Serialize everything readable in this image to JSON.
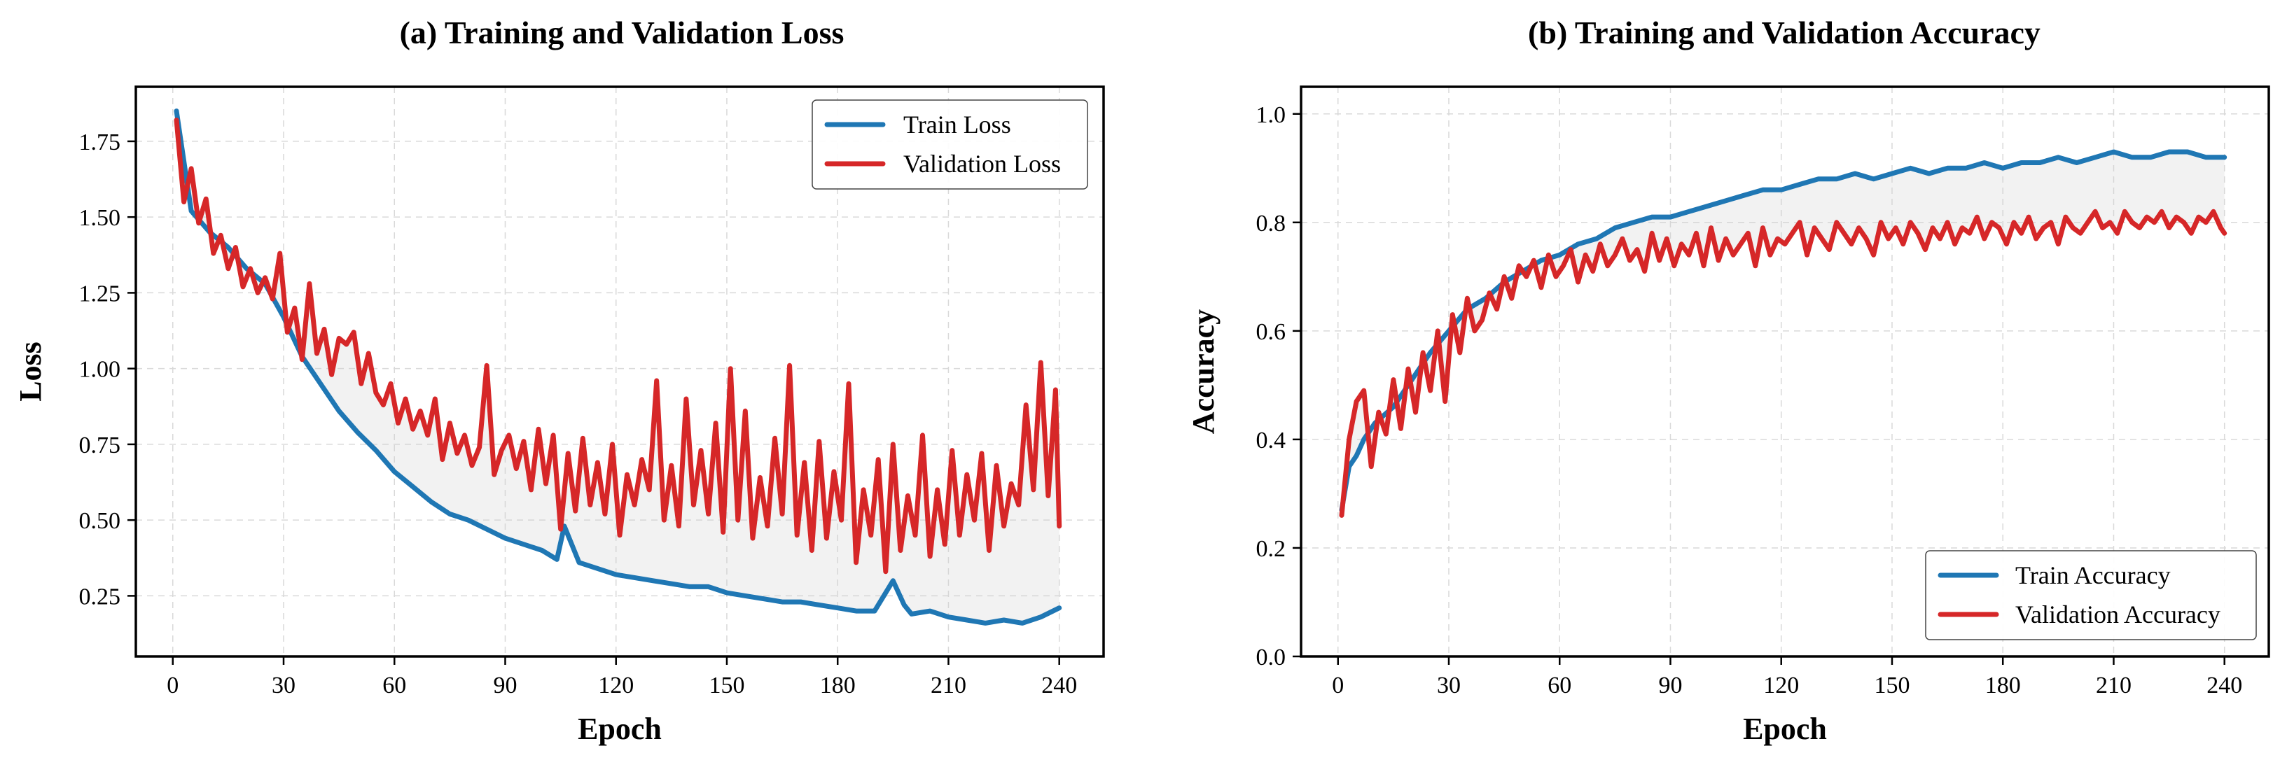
{
  "colors": {
    "train": "#1f77b4",
    "validation": "#d62728"
  },
  "chart_data": [
    {
      "type": "line",
      "title": "(a) Training and Validation Loss",
      "xlabel": "Epoch",
      "ylabel": "Loss",
      "xlim": [
        -10,
        252
      ],
      "ylim": [
        0.05,
        1.93
      ],
      "xticks": [
        0,
        30,
        60,
        90,
        120,
        150,
        180,
        210,
        240
      ],
      "xtick_labels": [
        "0",
        "30",
        "60",
        "90",
        "120",
        "150",
        "180",
        "210",
        "240"
      ],
      "yticks": [
        0.25,
        0.5,
        0.75,
        1.0,
        1.25,
        1.5,
        1.75
      ],
      "ytick_labels": [
        "0.25",
        "0.50",
        "0.75",
        "1.00",
        "1.25",
        "1.50",
        "1.75"
      ],
      "grid": true,
      "legend_position": "top-right",
      "gap_shading": true,
      "series": [
        {
          "name": "Train Loss",
          "x": [
            1,
            5,
            10,
            15,
            20,
            25,
            30,
            35,
            40,
            45,
            50,
            55,
            60,
            65,
            70,
            75,
            80,
            85,
            90,
            95,
            100,
            104,
            106,
            110,
            115,
            120,
            125,
            130,
            135,
            140,
            145,
            150,
            155,
            160,
            165,
            170,
            175,
            180,
            185,
            190,
            195,
            198,
            200,
            205,
            210,
            215,
            220,
            225,
            230,
            235,
            240
          ],
          "values": [
            1.85,
            1.52,
            1.45,
            1.4,
            1.33,
            1.28,
            1.17,
            1.04,
            0.95,
            0.86,
            0.79,
            0.73,
            0.66,
            0.61,
            0.56,
            0.52,
            0.5,
            0.47,
            0.44,
            0.42,
            0.4,
            0.37,
            0.48,
            0.36,
            0.34,
            0.32,
            0.31,
            0.3,
            0.29,
            0.28,
            0.28,
            0.26,
            0.25,
            0.24,
            0.23,
            0.23,
            0.22,
            0.21,
            0.2,
            0.2,
            0.3,
            0.22,
            0.19,
            0.2,
            0.18,
            0.17,
            0.16,
            0.17,
            0.16,
            0.18,
            0.21
          ]
        },
        {
          "name": "Validation Loss",
          "x": [
            1,
            3,
            5,
            7,
            9,
            11,
            13,
            15,
            17,
            19,
            21,
            23,
            25,
            27,
            29,
            31,
            33,
            35,
            37,
            39,
            41,
            43,
            45,
            47,
            49,
            51,
            53,
            55,
            57,
            59,
            61,
            63,
            65,
            67,
            69,
            71,
            73,
            75,
            77,
            79,
            81,
            83,
            85,
            87,
            89,
            91,
            93,
            95,
            97,
            99,
            101,
            103,
            105,
            107,
            109,
            111,
            113,
            115,
            117,
            119,
            121,
            123,
            125,
            127,
            129,
            131,
            133,
            135,
            137,
            139,
            141,
            143,
            145,
            147,
            149,
            151,
            153,
            155,
            157,
            159,
            161,
            163,
            165,
            167,
            169,
            171,
            173,
            175,
            177,
            179,
            181,
            183,
            185,
            187,
            189,
            191,
            193,
            195,
            197,
            199,
            201,
            203,
            205,
            207,
            209,
            211,
            213,
            215,
            217,
            219,
            221,
            223,
            225,
            227,
            229,
            231,
            233,
            235,
            237,
            239,
            240
          ],
          "values": [
            1.82,
            1.55,
            1.66,
            1.48,
            1.56,
            1.38,
            1.44,
            1.33,
            1.4,
            1.27,
            1.33,
            1.25,
            1.3,
            1.23,
            1.38,
            1.12,
            1.2,
            1.03,
            1.28,
            1.05,
            1.13,
            0.98,
            1.1,
            1.08,
            1.12,
            0.95,
            1.05,
            0.92,
            0.88,
            0.95,
            0.82,
            0.9,
            0.8,
            0.86,
            0.78,
            0.9,
            0.7,
            0.82,
            0.72,
            0.78,
            0.68,
            0.74,
            1.01,
            0.65,
            0.73,
            0.78,
            0.67,
            0.76,
            0.6,
            0.8,
            0.62,
            0.78,
            0.47,
            0.72,
            0.53,
            0.77,
            0.55,
            0.69,
            0.52,
            0.75,
            0.45,
            0.65,
            0.55,
            0.7,
            0.6,
            0.96,
            0.5,
            0.68,
            0.48,
            0.9,
            0.55,
            0.73,
            0.52,
            0.82,
            0.46,
            1.0,
            0.5,
            0.86,
            0.44,
            0.64,
            0.48,
            0.77,
            0.52,
            1.01,
            0.45,
            0.69,
            0.4,
            0.76,
            0.44,
            0.66,
            0.5,
            0.95,
            0.36,
            0.6,
            0.45,
            0.7,
            0.33,
            0.75,
            0.4,
            0.58,
            0.45,
            0.78,
            0.38,
            0.6,
            0.42,
            0.73,
            0.45,
            0.65,
            0.5,
            0.72,
            0.4,
            0.68,
            0.48,
            0.62,
            0.55,
            0.88,
            0.6,
            1.02,
            0.58,
            0.93,
            0.48
          ]
        }
      ]
    },
    {
      "type": "line",
      "title": "(b) Training and Validation Accuracy",
      "xlabel": "Epoch",
      "ylabel": "Accuracy",
      "xlim": [
        -10,
        252
      ],
      "ylim": [
        0.0,
        1.05
      ],
      "xticks": [
        0,
        30,
        60,
        90,
        120,
        150,
        180,
        210,
        240
      ],
      "xtick_labels": [
        "0",
        "30",
        "60",
        "90",
        "120",
        "150",
        "180",
        "210",
        "240"
      ],
      "yticks": [
        0.0,
        0.2,
        0.4,
        0.6,
        0.8,
        1.0
      ],
      "ytick_labels": [
        "0.0",
        "0.2",
        "0.4",
        "0.6",
        "0.8",
        "1.0"
      ],
      "grid": true,
      "legend_position": "bottom-right",
      "gap_shading": true,
      "series": [
        {
          "name": "Train Accuracy",
          "x": [
            1,
            3,
            5,
            7,
            10,
            15,
            20,
            25,
            30,
            35,
            40,
            45,
            50,
            55,
            60,
            65,
            70,
            75,
            80,
            85,
            90,
            95,
            100,
            105,
            110,
            115,
            120,
            125,
            130,
            135,
            140,
            145,
            150,
            155,
            160,
            165,
            170,
            175,
            180,
            185,
            190,
            195,
            200,
            205,
            210,
            215,
            220,
            225,
            230,
            235,
            240
          ],
          "values": [
            0.27,
            0.35,
            0.37,
            0.4,
            0.43,
            0.46,
            0.51,
            0.56,
            0.6,
            0.64,
            0.66,
            0.69,
            0.71,
            0.73,
            0.74,
            0.76,
            0.77,
            0.79,
            0.8,
            0.81,
            0.81,
            0.82,
            0.83,
            0.84,
            0.85,
            0.86,
            0.86,
            0.87,
            0.88,
            0.88,
            0.89,
            0.88,
            0.89,
            0.9,
            0.89,
            0.9,
            0.9,
            0.91,
            0.9,
            0.91,
            0.91,
            0.92,
            0.91,
            0.92,
            0.93,
            0.92,
            0.92,
            0.93,
            0.93,
            0.92,
            0.92
          ]
        },
        {
          "name": "Validation Accuracy",
          "x": [
            1,
            3,
            5,
            7,
            9,
            11,
            13,
            15,
            17,
            19,
            21,
            23,
            25,
            27,
            29,
            31,
            33,
            35,
            37,
            39,
            41,
            43,
            45,
            47,
            49,
            51,
            53,
            55,
            57,
            59,
            61,
            63,
            65,
            67,
            69,
            71,
            73,
            75,
            77,
            79,
            81,
            83,
            85,
            87,
            89,
            91,
            93,
            95,
            97,
            99,
            101,
            103,
            105,
            107,
            109,
            111,
            113,
            115,
            117,
            119,
            121,
            123,
            125,
            127,
            129,
            131,
            133,
            135,
            137,
            139,
            141,
            143,
            145,
            147,
            149,
            151,
            153,
            155,
            157,
            159,
            161,
            163,
            165,
            167,
            169,
            171,
            173,
            175,
            177,
            179,
            181,
            183,
            185,
            187,
            189,
            191,
            193,
            195,
            197,
            199,
            201,
            203,
            205,
            207,
            209,
            211,
            213,
            215,
            217,
            219,
            221,
            223,
            225,
            227,
            229,
            231,
            233,
            235,
            237,
            239,
            240
          ],
          "values": [
            0.26,
            0.4,
            0.47,
            0.49,
            0.35,
            0.45,
            0.41,
            0.51,
            0.42,
            0.53,
            0.45,
            0.56,
            0.49,
            0.6,
            0.47,
            0.63,
            0.56,
            0.66,
            0.6,
            0.62,
            0.67,
            0.64,
            0.7,
            0.66,
            0.72,
            0.7,
            0.73,
            0.68,
            0.74,
            0.7,
            0.72,
            0.75,
            0.69,
            0.74,
            0.71,
            0.76,
            0.72,
            0.74,
            0.77,
            0.73,
            0.75,
            0.71,
            0.78,
            0.73,
            0.77,
            0.72,
            0.76,
            0.74,
            0.78,
            0.72,
            0.79,
            0.73,
            0.77,
            0.74,
            0.76,
            0.78,
            0.72,
            0.79,
            0.74,
            0.77,
            0.76,
            0.78,
            0.8,
            0.74,
            0.79,
            0.77,
            0.75,
            0.8,
            0.78,
            0.76,
            0.79,
            0.77,
            0.74,
            0.8,
            0.77,
            0.79,
            0.76,
            0.8,
            0.78,
            0.75,
            0.79,
            0.77,
            0.8,
            0.76,
            0.79,
            0.78,
            0.81,
            0.77,
            0.8,
            0.79,
            0.76,
            0.8,
            0.78,
            0.81,
            0.77,
            0.79,
            0.8,
            0.76,
            0.81,
            0.79,
            0.78,
            0.8,
            0.82,
            0.79,
            0.8,
            0.78,
            0.82,
            0.8,
            0.79,
            0.81,
            0.8,
            0.82,
            0.79,
            0.81,
            0.8,
            0.78,
            0.81,
            0.8,
            0.82,
            0.79,
            0.78
          ]
        }
      ]
    }
  ]
}
